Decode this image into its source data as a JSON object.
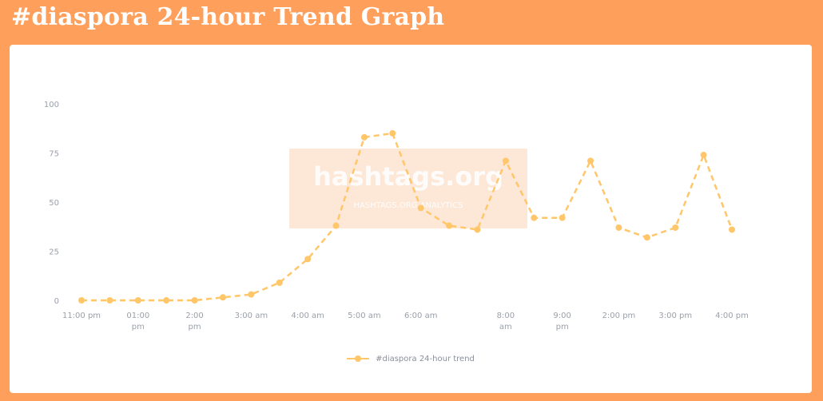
{
  "header": {
    "title": "#diaspora 24-hour Trend Graph"
  },
  "colors": {
    "background": "#ff9f5c",
    "panel": "#ffffff",
    "series": "#ffc66a",
    "watermark": "#fde7d7"
  },
  "watermark": {
    "main": "hashtags.org",
    "sub": "HASHTAGS.ORG ANALYTICS"
  },
  "chart_data": {
    "type": "line",
    "title": "",
    "xlabel": "",
    "ylabel": "",
    "ylim": [
      0,
      100
    ],
    "yticks": [
      0,
      25,
      50,
      75,
      100
    ],
    "ytick_labels": [
      "0",
      "25",
      "50",
      "75",
      "100"
    ],
    "grid": false,
    "legend_position": "bottom",
    "x_index": [
      0,
      1,
      2,
      3,
      4,
      5,
      6,
      7,
      8,
      9,
      10,
      11,
      12,
      13,
      14,
      15,
      16,
      17,
      18,
      19,
      20,
      21,
      22,
      23
    ],
    "x_tick_indices": [
      0,
      2,
      4,
      6,
      8,
      10,
      12,
      15,
      17,
      19,
      21,
      23
    ],
    "x_tick_labels": [
      [
        "11:00 pm"
      ],
      [
        "01:00",
        "pm"
      ],
      [
        "2:00",
        "pm"
      ],
      [
        "3:00 am"
      ],
      [
        "4:00 am"
      ],
      [
        "5:00 am"
      ],
      [
        "6:00 am"
      ],
      [
        "8:00",
        "am"
      ],
      [
        "9:00",
        "pm"
      ],
      [
        "2:00 pm"
      ],
      [
        "3:00 pm"
      ],
      [
        "4:00 pm"
      ]
    ],
    "series": [
      {
        "name": "#diaspora 24-hour trend",
        "dashed": true,
        "values": [
          0,
          0,
          0,
          0,
          0,
          1.5,
          3,
          9,
          21,
          38,
          83,
          85,
          47,
          38,
          36,
          71,
          42,
          42,
          71,
          37,
          32,
          37,
          74,
          36
        ]
      }
    ]
  }
}
